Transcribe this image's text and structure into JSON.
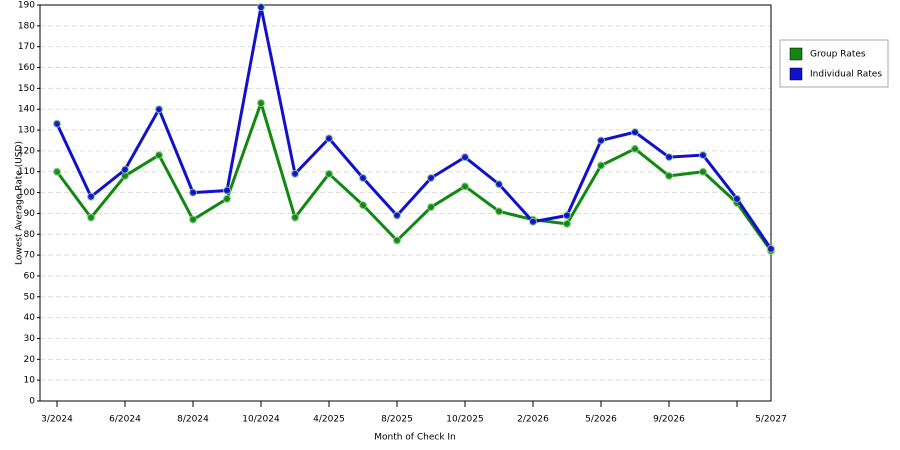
{
  "chart_data": {
    "type": "line",
    "x_label": "Month of Check In",
    "y_label": "Lowest Average Rate (USD)",
    "categories": [
      "3/2024",
      null,
      "6/2024",
      null,
      "8/2024",
      null,
      "10/2024",
      null,
      "4/2025",
      null,
      "8/2025",
      null,
      "10/2025",
      null,
      "2/2026",
      null,
      "5/2026",
      null,
      "9/2026",
      null,
      null,
      "5/2027"
    ],
    "series": [
      {
        "name": "Group Rates",
        "color": "#118811",
        "values": [
          110,
          88,
          108,
          118,
          87,
          97,
          143,
          88,
          109,
          94,
          77,
          93,
          103,
          91,
          87,
          85,
          113,
          121,
          108,
          110,
          95,
          72
        ]
      },
      {
        "name": "Individual Rates",
        "color": "#1111cc",
        "values": [
          133,
          98,
          111,
          140,
          100,
          101,
          189,
          109,
          126,
          107,
          89,
          107,
          117,
          104,
          86,
          89,
          125,
          129,
          117,
          118,
          97,
          73
        ]
      }
    ],
    "ylim": [
      0,
      190
    ],
    "yticks": [
      0,
      10,
      20,
      30,
      40,
      50,
      60,
      70,
      80,
      90,
      100,
      110,
      120,
      130,
      140,
      150,
      160,
      170,
      180,
      190
    ],
    "grid": true,
    "legend": "right"
  }
}
